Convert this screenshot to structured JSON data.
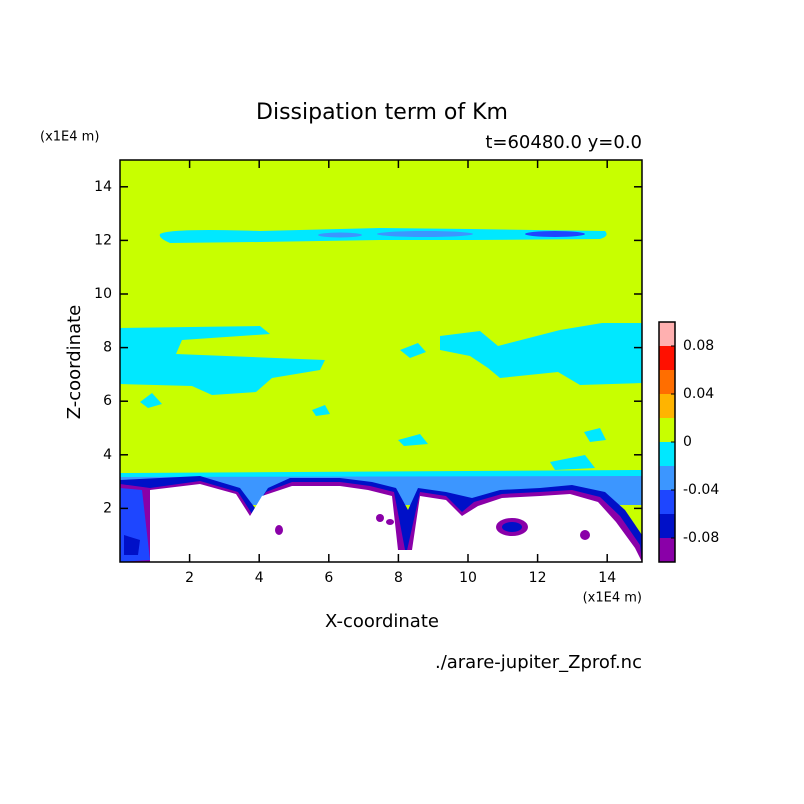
{
  "chart_data": {
    "type": "contour",
    "title": "Dissipation term of Km",
    "subtitle": "t=60480.0 y=0.0",
    "x_label": "X-coordinate",
    "y_label": "Z-coordinate",
    "x_unit": "(x1E4 m)",
    "y_unit": "(x1E4 m)",
    "source": "./arare-jupiter_Zprof.nc",
    "xlim": [
      0,
      15
    ],
    "ylim": [
      0,
      15
    ],
    "xticks": [
      2,
      4,
      6,
      8,
      10,
      12,
      14
    ],
    "yticks": [
      2,
      4,
      6,
      8,
      10,
      12,
      14
    ],
    "levels": [
      -0.1,
      -0.08,
      -0.06,
      -0.04,
      -0.02,
      0,
      0.02,
      0.04,
      0.06,
      0.08,
      0.1
    ],
    "colors": [
      "#8a00a8",
      "#0010c8",
      "#1e46ff",
      "#3c96ff",
      "#00e8ff",
      "#c8ff00",
      "#ffb400",
      "#ff6e00",
      "#ff1000",
      "#ffb0b0"
    ],
    "colorbar_ticks": [
      -0.08,
      -0.04,
      0,
      0.04,
      0.08
    ]
  }
}
